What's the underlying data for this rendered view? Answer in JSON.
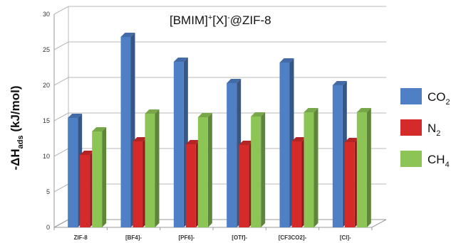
{
  "chart_data": {
    "type": "bar",
    "title": {
      "main": "[BMIM]",
      "sup1": "+",
      "mid": "[X]",
      "sup2": "-",
      "tail": "@ZIF-8"
    },
    "ylabel": {
      "pre": "-ΔH",
      "sub": "ads",
      "post": " (kJ/mol)"
    },
    "xlabel": "",
    "ylim": [
      0,
      30
    ],
    "yticks": [
      0,
      5,
      10,
      15,
      20,
      25,
      30
    ],
    "grid": true,
    "legend_position": "right",
    "categories": [
      "ZIF-8",
      "[BF4]-",
      "[PF6]-",
      "[OTf]-",
      "[CF3CO2]-",
      "[Cl]-"
    ],
    "series": [
      {
        "name_base": "CO",
        "name_sub": "2",
        "color": "#4f7fc4",
        "values": [
          15.4,
          26.8,
          23.3,
          20.3,
          23.2,
          20.0
        ]
      },
      {
        "name_base": "N",
        "name_sub": "2",
        "color": "#d42a2a",
        "values": [
          10.2,
          12.1,
          11.7,
          11.6,
          12.1,
          12.0
        ]
      },
      {
        "name_base": "CH",
        "name_sub": "4",
        "color": "#8cc456",
        "values": [
          13.5,
          16.0,
          15.5,
          15.6,
          16.2,
          16.2
        ]
      }
    ]
  }
}
